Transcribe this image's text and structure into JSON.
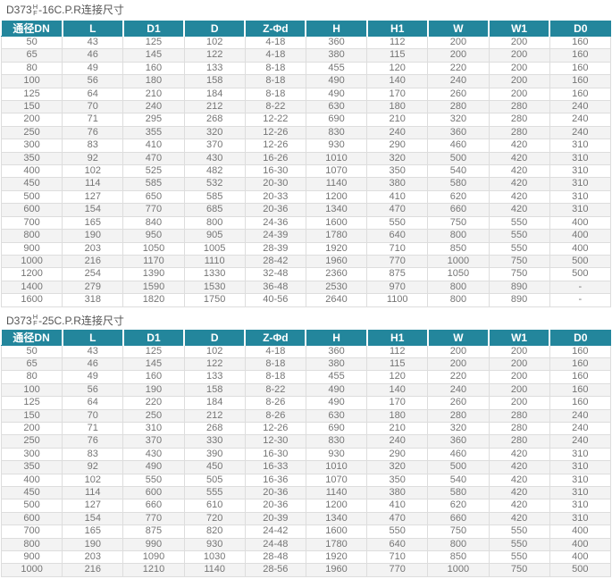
{
  "colors": {
    "header_bg": "#23869c",
    "header_text": "#ffffff",
    "title_color": "#555555",
    "cell_text": "#757575",
    "border": "#dddddd",
    "stripe_bg": "#f3f3f3"
  },
  "columns": [
    "通径DN",
    "L",
    "D1",
    "D",
    "Z-Φd",
    "H",
    "H1",
    "W",
    "W1",
    "D0"
  ],
  "tables": [
    {
      "title": {
        "prefix": "D373",
        "sup": "H",
        "sub": "F",
        "suffix": "-16C.P.R连接尺寸"
      },
      "rows": [
        [
          "50",
          "43",
          "125",
          "102",
          "4-18",
          "360",
          "112",
          "200",
          "200",
          "160"
        ],
        [
          "65",
          "46",
          "145",
          "122",
          "4-18",
          "380",
          "115",
          "200",
          "200",
          "160"
        ],
        [
          "80",
          "49",
          "160",
          "133",
          "8-18",
          "455",
          "120",
          "220",
          "200",
          "160"
        ],
        [
          "100",
          "56",
          "180",
          "158",
          "8-18",
          "490",
          "140",
          "240",
          "200",
          "160"
        ],
        [
          "125",
          "64",
          "210",
          "184",
          "8-18",
          "490",
          "170",
          "260",
          "200",
          "160"
        ],
        [
          "150",
          "70",
          "240",
          "212",
          "8-22",
          "630",
          "180",
          "280",
          "280",
          "240"
        ],
        [
          "200",
          "71",
          "295",
          "268",
          "12-22",
          "690",
          "210",
          "320",
          "280",
          "240"
        ],
        [
          "250",
          "76",
          "355",
          "320",
          "12-26",
          "830",
          "240",
          "360",
          "280",
          "240"
        ],
        [
          "300",
          "83",
          "410",
          "370",
          "12-26",
          "930",
          "290",
          "460",
          "420",
          "310"
        ],
        [
          "350",
          "92",
          "470",
          "430",
          "16-26",
          "1010",
          "320",
          "500",
          "420",
          "310"
        ],
        [
          "400",
          "102",
          "525",
          "482",
          "16-30",
          "1070",
          "350",
          "540",
          "420",
          "310"
        ],
        [
          "450",
          "114",
          "585",
          "532",
          "20-30",
          "1140",
          "380",
          "580",
          "420",
          "310"
        ],
        [
          "500",
          "127",
          "650",
          "585",
          "20-33",
          "1200",
          "410",
          "620",
          "420",
          "310"
        ],
        [
          "600",
          "154",
          "770",
          "685",
          "20-36",
          "1340",
          "470",
          "660",
          "420",
          "310"
        ],
        [
          "700",
          "165",
          "840",
          "800",
          "24-36",
          "1600",
          "550",
          "750",
          "550",
          "400"
        ],
        [
          "800",
          "190",
          "950",
          "905",
          "24-39",
          "1780",
          "640",
          "800",
          "550",
          "400"
        ],
        [
          "900",
          "203",
          "1050",
          "1005",
          "28-39",
          "1920",
          "710",
          "850",
          "550",
          "400"
        ],
        [
          "1000",
          "216",
          "1170",
          "1110",
          "28-42",
          "1960",
          "770",
          "1000",
          "750",
          "500"
        ],
        [
          "1200",
          "254",
          "1390",
          "1330",
          "32-48",
          "2360",
          "875",
          "1050",
          "750",
          "500"
        ],
        [
          "1400",
          "279",
          "1590",
          "1530",
          "36-48",
          "2530",
          "970",
          "800",
          "890",
          "-"
        ],
        [
          "1600",
          "318",
          "1820",
          "1750",
          "40-56",
          "2640",
          "1100",
          "800",
          "890",
          "-"
        ]
      ]
    },
    {
      "title": {
        "prefix": "D373",
        "sup": "H",
        "sub": "F",
        "suffix": "-25C.P.R连接尺寸"
      },
      "rows": [
        [
          "50",
          "43",
          "125",
          "102",
          "4-18",
          "360",
          "112",
          "200",
          "200",
          "160"
        ],
        [
          "65",
          "46",
          "145",
          "122",
          "8-18",
          "380",
          "115",
          "200",
          "200",
          "160"
        ],
        [
          "80",
          "49",
          "160",
          "133",
          "8-18",
          "455",
          "120",
          "220",
          "200",
          "160"
        ],
        [
          "100",
          "56",
          "190",
          "158",
          "8-22",
          "490",
          "140",
          "240",
          "200",
          "160"
        ],
        [
          "125",
          "64",
          "220",
          "184",
          "8-26",
          "490",
          "170",
          "260",
          "200",
          "160"
        ],
        [
          "150",
          "70",
          "250",
          "212",
          "8-26",
          "630",
          "180",
          "280",
          "280",
          "240"
        ],
        [
          "200",
          "71",
          "310",
          "268",
          "12-26",
          "690",
          "210",
          "320",
          "280",
          "240"
        ],
        [
          "250",
          "76",
          "370",
          "330",
          "12-30",
          "830",
          "240",
          "360",
          "280",
          "240"
        ],
        [
          "300",
          "83",
          "430",
          "390",
          "16-30",
          "930",
          "290",
          "460",
          "420",
          "310"
        ],
        [
          "350",
          "92",
          "490",
          "450",
          "16-33",
          "1010",
          "320",
          "500",
          "420",
          "310"
        ],
        [
          "400",
          "102",
          "550",
          "505",
          "16-36",
          "1070",
          "350",
          "540",
          "420",
          "310"
        ],
        [
          "450",
          "114",
          "600",
          "555",
          "20-36",
          "1140",
          "380",
          "580",
          "420",
          "310"
        ],
        [
          "500",
          "127",
          "660",
          "610",
          "20-36",
          "1200",
          "410",
          "620",
          "420",
          "310"
        ],
        [
          "600",
          "154",
          "770",
          "720",
          "20-39",
          "1340",
          "470",
          "660",
          "420",
          "310"
        ],
        [
          "700",
          "165",
          "875",
          "820",
          "24-42",
          "1600",
          "550",
          "750",
          "550",
          "400"
        ],
        [
          "800",
          "190",
          "990",
          "930",
          "24-48",
          "1780",
          "640",
          "800",
          "550",
          "400"
        ],
        [
          "900",
          "203",
          "1090",
          "1030",
          "28-48",
          "1920",
          "710",
          "850",
          "550",
          "400"
        ],
        [
          "1000",
          "216",
          "1210",
          "1140",
          "28-56",
          "1960",
          "770",
          "1000",
          "750",
          "500"
        ]
      ]
    }
  ]
}
